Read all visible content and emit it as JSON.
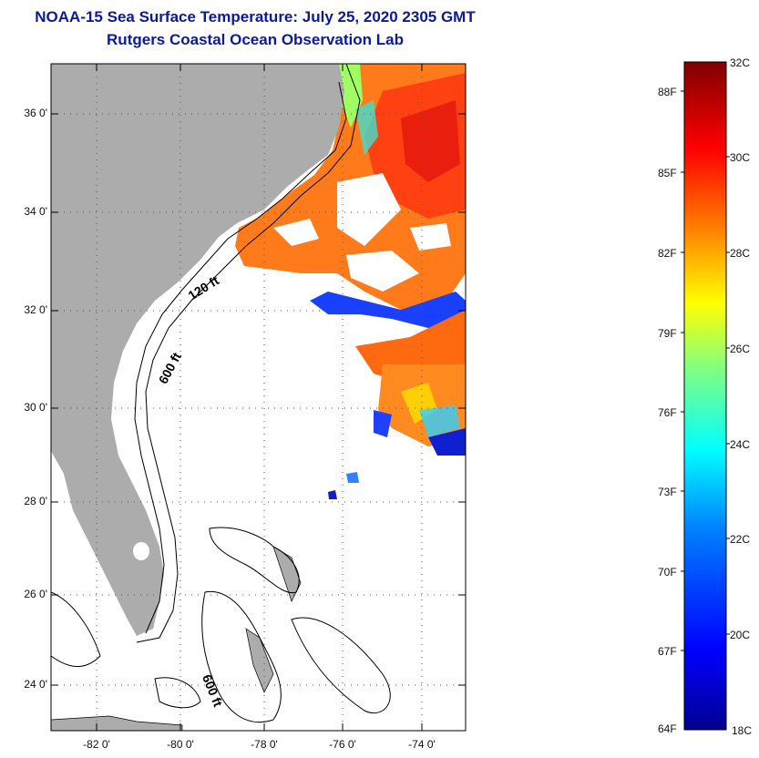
{
  "title": {
    "line1": "NOAA-15 Sea Surface Temperature:  July 25, 2020 2305 GMT",
    "line2": "Rutgers Coastal Ocean Observation Lab"
  },
  "map": {
    "lat_ticks": [
      "36 0'",
      "34 0'",
      "32 0'",
      "30 0'",
      "28 0'",
      "26 0'",
      "24 0'"
    ],
    "lon_ticks": [
      "-82 0'",
      "-80 0'",
      "-78 0'",
      "-76 0'",
      "-74 0'"
    ],
    "contour_labels": [
      "120 ft",
      "600 ft",
      "600 ft"
    ],
    "colors": {
      "land": "#acacac",
      "ocean": "#ffffff",
      "grid": "#555555"
    }
  },
  "colorbar": {
    "fahrenheit_labels": [
      "88F",
      "85F",
      "82F",
      "79F",
      "76F",
      "73F",
      "70F",
      "67F",
      "64F"
    ],
    "celsius_labels": [
      "32C",
      "30C",
      "28C",
      "26C",
      "24C",
      "22C",
      "20C",
      "18C"
    ],
    "range_c": [
      18,
      32
    ],
    "colors": [
      "#00008f",
      "#0000ff",
      "#0080ff",
      "#00ffff",
      "#80ff80",
      "#ffff00",
      "#ff8000",
      "#ff0000",
      "#800000"
    ]
  }
}
